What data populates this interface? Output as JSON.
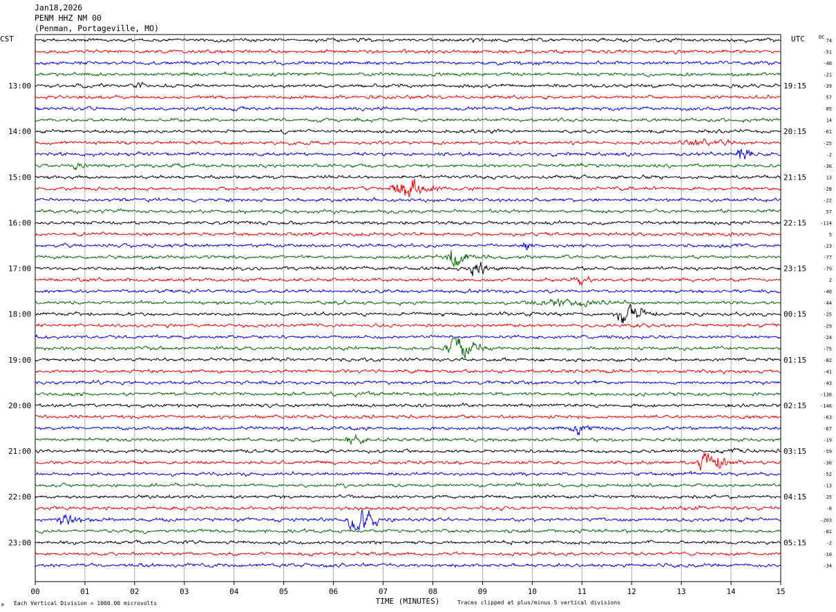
{
  "header": {
    "date": "Jan18,2026",
    "station": "PENM HHZ NM 00",
    "location": "(Penman, Portageville, MO)"
  },
  "labels": {
    "left_tz": "CST",
    "right_tz": "UTC",
    "dc": "DC",
    "xlabel": "TIME (MINUTES)",
    "footer_left": "Each Vertical Division = 1000.00 microvolts",
    "footer_right": "Traces clipped at plus/minus 5 vertical divisions",
    "corner_mark": "M"
  },
  "colors": {
    "trace_cycle": [
      "#000000",
      "#ee0000",
      "#0000dd",
      "#006600"
    ],
    "grid": "#000000"
  },
  "chart_data": {
    "type": "line",
    "description_of_axes": "helicorder",
    "x_ticks": [
      "00",
      "01",
      "02",
      "03",
      "04",
      "05",
      "06",
      "07",
      "08",
      "09",
      "10",
      "11",
      "12",
      "13",
      "14",
      "15"
    ],
    "xlim": [
      0,
      15
    ],
    "left_hour_labels": [
      "13:00",
      "14:00",
      "15:00",
      "16:00",
      "17:00",
      "18:00",
      "19:00",
      "20:00",
      "21:00",
      "22:00",
      "23:00"
    ],
    "right_hour_labels": [
      "19:15",
      "20:15",
      "21:15",
      "22:15",
      "23:15",
      "00:15",
      "01:15",
      "02:15",
      "03:15",
      "04:15",
      "05:15"
    ],
    "dc_offsets": [
      "74",
      "-51",
      "-40",
      "-21",
      "-39",
      "57",
      "85",
      "14",
      "-61",
      "-25",
      "-2",
      "-36",
      "13",
      "-28",
      "-22",
      "57",
      "-114",
      "5",
      "-23",
      "-77",
      "-79",
      "2",
      "-40",
      "-44",
      "-25",
      "-29",
      "-24",
      "-75",
      "-82",
      "-41",
      "-43",
      "-136",
      "-146",
      "-63",
      "-67",
      "-19",
      "-59",
      "-36",
      "-52",
      "-13",
      "25",
      "-8",
      "-203",
      "-81",
      "-2",
      "-10",
      "-34"
    ],
    "events": [
      {
        "line": 0,
        "minute": 6.5,
        "amp": 0.4,
        "dur": 0.3
      },
      {
        "line": 4,
        "minute": 2.1,
        "amp": 0.5,
        "dur": 0.4
      },
      {
        "line": 9,
        "minute": 13.3,
        "amp": 0.6,
        "dur": 1.2
      },
      {
        "line": 10,
        "minute": 14.2,
        "amp": 1.2,
        "dur": 0.5
      },
      {
        "line": 11,
        "minute": 0.8,
        "amp": 0.5,
        "dur": 0.4
      },
      {
        "line": 13,
        "minute": 7.35,
        "amp": 1.9,
        "dur": 1.0
      },
      {
        "line": 18,
        "minute": 9.85,
        "amp": 1.0,
        "dur": 0.3
      },
      {
        "line": 19,
        "minute": 8.4,
        "amp": 1.8,
        "dur": 0.6
      },
      {
        "line": 20,
        "minute": 8.85,
        "amp": 1.3,
        "dur": 0.6
      },
      {
        "line": 21,
        "minute": 10.9,
        "amp": 0.6,
        "dur": 0.4
      },
      {
        "line": 23,
        "minute": 10.5,
        "amp": 0.4,
        "dur": 2.5
      },
      {
        "line": 24,
        "minute": 11.85,
        "amp": 1.9,
        "dur": 0.8
      },
      {
        "line": 27,
        "minute": 8.45,
        "amp": 2.2,
        "dur": 0.9
      },
      {
        "line": 34,
        "minute": 10.85,
        "amp": 1.2,
        "dur": 0.6
      },
      {
        "line": 35,
        "minute": 6.35,
        "amp": 0.9,
        "dur": 0.5
      },
      {
        "line": 36,
        "minute": 14.0,
        "amp": 0.4,
        "dur": 0.2
      },
      {
        "line": 37,
        "minute": 13.45,
        "amp": 1.6,
        "dur": 0.9
      },
      {
        "line": 42,
        "minute": 0.55,
        "amp": 1.3,
        "dur": 0.7
      },
      {
        "line": 42,
        "minute": 6.45,
        "amp": 2.2,
        "dur": 0.8
      }
    ]
  }
}
